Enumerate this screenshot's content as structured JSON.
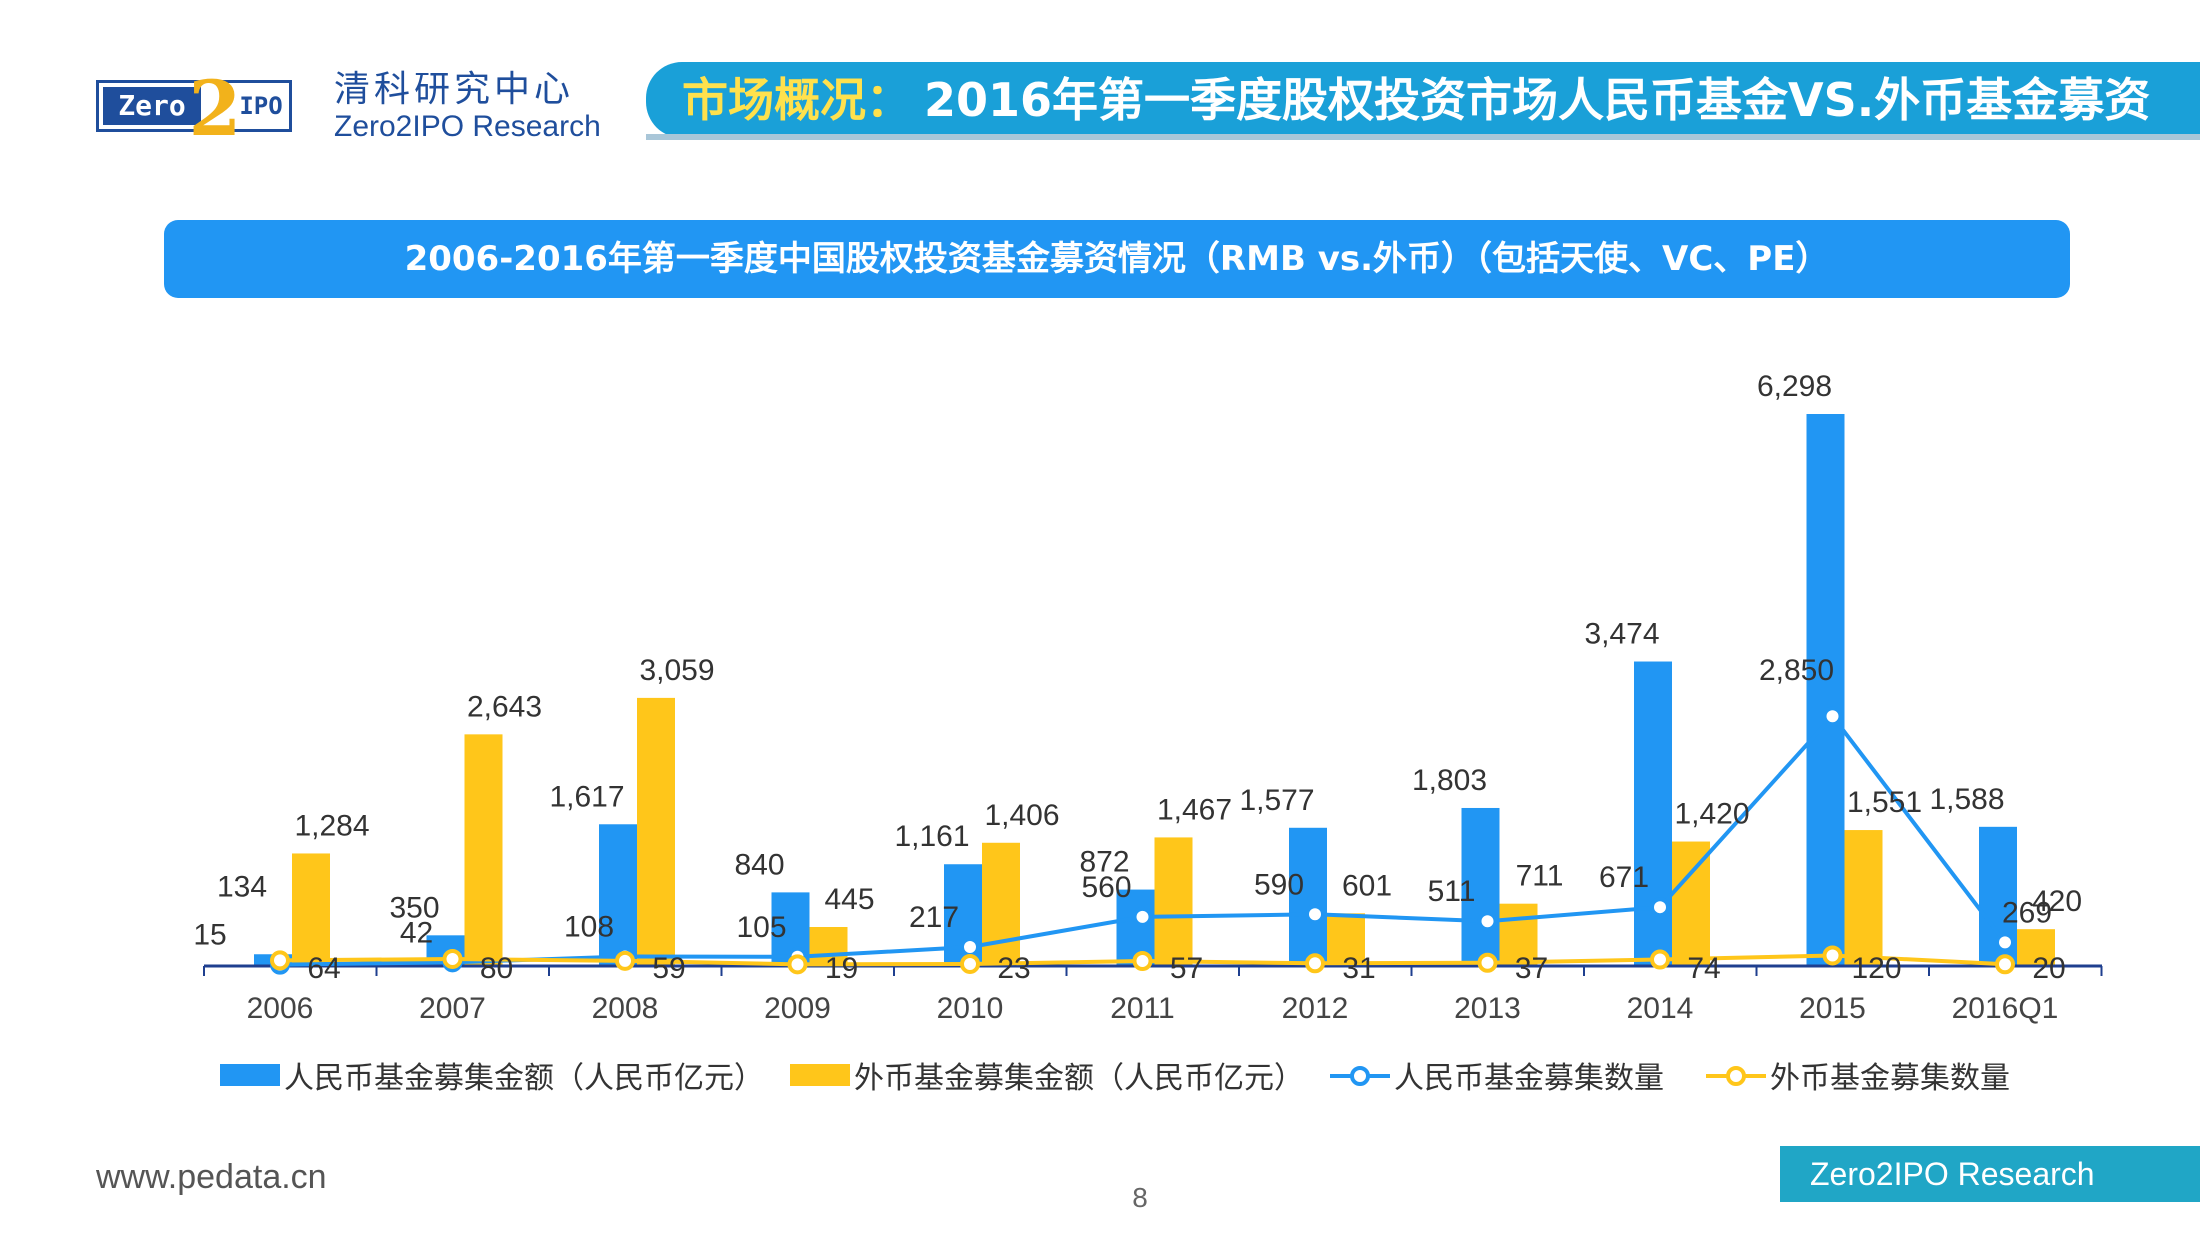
{
  "header": {
    "logo_left": "Zero",
    "logo_two": "2",
    "logo_right": "IPO",
    "brand_cn": "清科研究中心",
    "brand_en": "Zero2IPO Research",
    "title_prefix": "市场概况：",
    "title_main": "2016年第一季度股权投资市场人民币基金VS.外币基金募资"
  },
  "colors": {
    "rmb": "#2196f3",
    "foreign": "#ffc61a",
    "title_bar": "#1aa0d8",
    "footer_tag": "#20a6c6"
  },
  "chart_data": {
    "type": "bar",
    "title": "2006-2016年第一季度中国股权投资基金募资情况（RMB vs.外币）（包括天使、VC、PE）",
    "categories": [
      "2006",
      "2007",
      "2008",
      "2009",
      "2010",
      "2011",
      "2012",
      "2013",
      "2014",
      "2015",
      "2016Q1"
    ],
    "series": [
      {
        "name": "人民币基金募集金额（人民币亿元）",
        "kind": "bar",
        "values": [
          134,
          350,
          1617,
          840,
          1161,
          872,
          1577,
          1803,
          3474,
          6298,
          1588
        ]
      },
      {
        "name": "外币基金募集金额（人民币亿元）",
        "kind": "bar",
        "values": [
          1284,
          2643,
          3059,
          445,
          1406,
          1467,
          601,
          711,
          1420,
          1551,
          420
        ]
      },
      {
        "name": "人民币基金募集数量",
        "kind": "line",
        "values": [
          15,
          42,
          108,
          105,
          217,
          560,
          590,
          511,
          671,
          2850,
          269
        ]
      },
      {
        "name": "外币基金募集数量",
        "kind": "line",
        "values": [
          64,
          80,
          59,
          19,
          23,
          57,
          31,
          37,
          74,
          120,
          20
        ]
      }
    ],
    "ylim": [
      0,
      6500
    ],
    "xlabel": "",
    "ylabel": "",
    "legend": "bottom"
  },
  "footer": {
    "url": "www.pedata.cn",
    "page": "8",
    "tag": "Zero2IPO Research"
  }
}
